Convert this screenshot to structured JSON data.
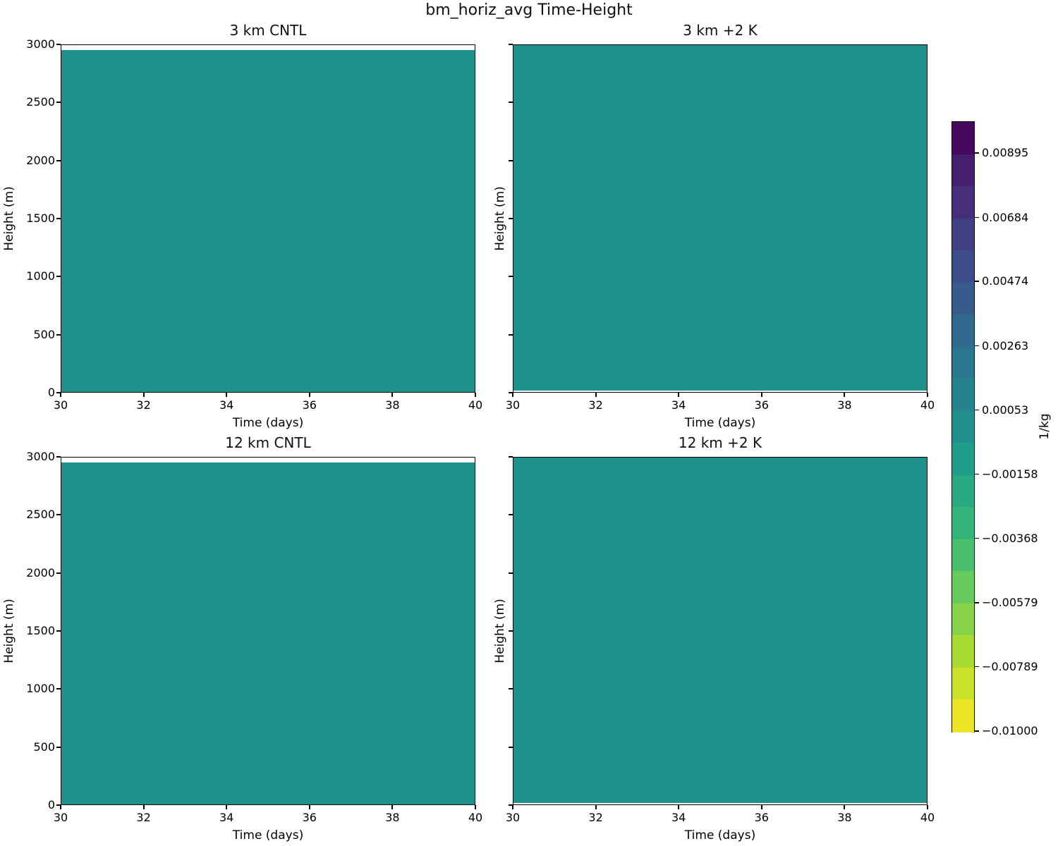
{
  "figure": {
    "suptitle": "bm_horiz_avg Time-Height",
    "background_color": "#ffffff",
    "text_color": "#000000",
    "frame_color": "#000000",
    "fill_color": "#21918c"
  },
  "chart_data": {
    "type": "heatmap",
    "suptitle": "bm_horiz_avg Time-Height",
    "variable": "bm_horiz_avg",
    "units": "1/kg",
    "layout": "2x2 grid of time-height panels with shared vertical colorbar on right",
    "panels": [
      {
        "title": "3 km CNTL",
        "xlabel": "Time (days)",
        "ylabel": "Height (m)",
        "xlim": [
          30,
          40
        ],
        "ylim": [
          0,
          3000
        ],
        "xticks": [
          30,
          32,
          34,
          36,
          38,
          40
        ],
        "yticks": [
          0,
          500,
          1000,
          1500,
          2000,
          2500,
          3000
        ],
        "show_ytick_labels": true,
        "field": "uniform",
        "approx_value": 0.0,
        "value_band": [
          -0.00053,
          0.00053
        ],
        "data_y_extent_m": [
          0,
          2955
        ]
      },
      {
        "title": "3 km +2 K",
        "xlabel": "Time (days)",
        "ylabel": "Height (m)",
        "xlim": [
          30,
          40
        ],
        "ylim": [
          0,
          3000
        ],
        "xticks": [
          30,
          32,
          34,
          36,
          38,
          40
        ],
        "yticks": [
          0,
          500,
          1000,
          1500,
          2000,
          2500,
          3000
        ],
        "show_ytick_labels": false,
        "field": "uniform",
        "approx_value": 0.0,
        "value_band": [
          -0.00053,
          0.00053
        ],
        "data_y_extent_m": [
          15,
          3000
        ]
      },
      {
        "title": "12 km CNTL",
        "xlabel": "Time (days)",
        "ylabel": "Height (m)",
        "xlim": [
          30,
          40
        ],
        "ylim": [
          0,
          3000
        ],
        "xticks": [
          30,
          32,
          34,
          36,
          38,
          40
        ],
        "yticks": [
          0,
          500,
          1000,
          1500,
          2000,
          2500,
          3000
        ],
        "show_ytick_labels": true,
        "field": "uniform",
        "approx_value": 0.0,
        "value_band": [
          -0.00053,
          0.00053
        ],
        "data_y_extent_m": [
          0,
          2955
        ]
      },
      {
        "title": "12 km +2 K",
        "xlabel": "Time (days)",
        "ylabel": "Height (m)",
        "xlim": [
          30,
          40
        ],
        "ylim": [
          0,
          3000
        ],
        "xticks": [
          30,
          32,
          34,
          36,
          38,
          40
        ],
        "yticks": [
          0,
          500,
          1000,
          1500,
          2000,
          2500,
          3000
        ],
        "show_ytick_labels": false,
        "field": "uniform",
        "approx_value": 0.0,
        "value_band": [
          -0.00053,
          0.00053
        ],
        "data_y_extent_m": [
          12,
          3000
        ]
      }
    ],
    "colorbar": {
      "label": "1/kg",
      "orientation": "vertical",
      "vmin": -0.01,
      "vmax": 0.01,
      "n_bands": 19,
      "colormap": "viridis_r",
      "tick_values": [
        0.00895,
        0.00684,
        0.00474,
        0.00263,
        0.00053,
        -0.00158,
        -0.00368,
        -0.00579,
        -0.00789,
        -0.01
      ],
      "tick_labels": [
        "0.00895",
        "0.00684",
        "0.00474",
        "0.00263",
        "0.00053",
        "−0.00158",
        "−0.00368",
        "−0.00579",
        "−0.00789",
        "−0.01000"
      ],
      "band_colors_top_to_bottom": [
        "#450a5c",
        "#471d6e",
        "#462e7b",
        "#413e83",
        "#3c4e8a",
        "#365c8c",
        "#306a8e",
        "#2b768e",
        "#26838e",
        "#22908c",
        "#1f9d89",
        "#29a982",
        "#33b57a",
        "#4bc06c",
        "#66cb5c",
        "#86d349",
        "#a8db33",
        "#cae129",
        "#ece426"
      ]
    }
  }
}
